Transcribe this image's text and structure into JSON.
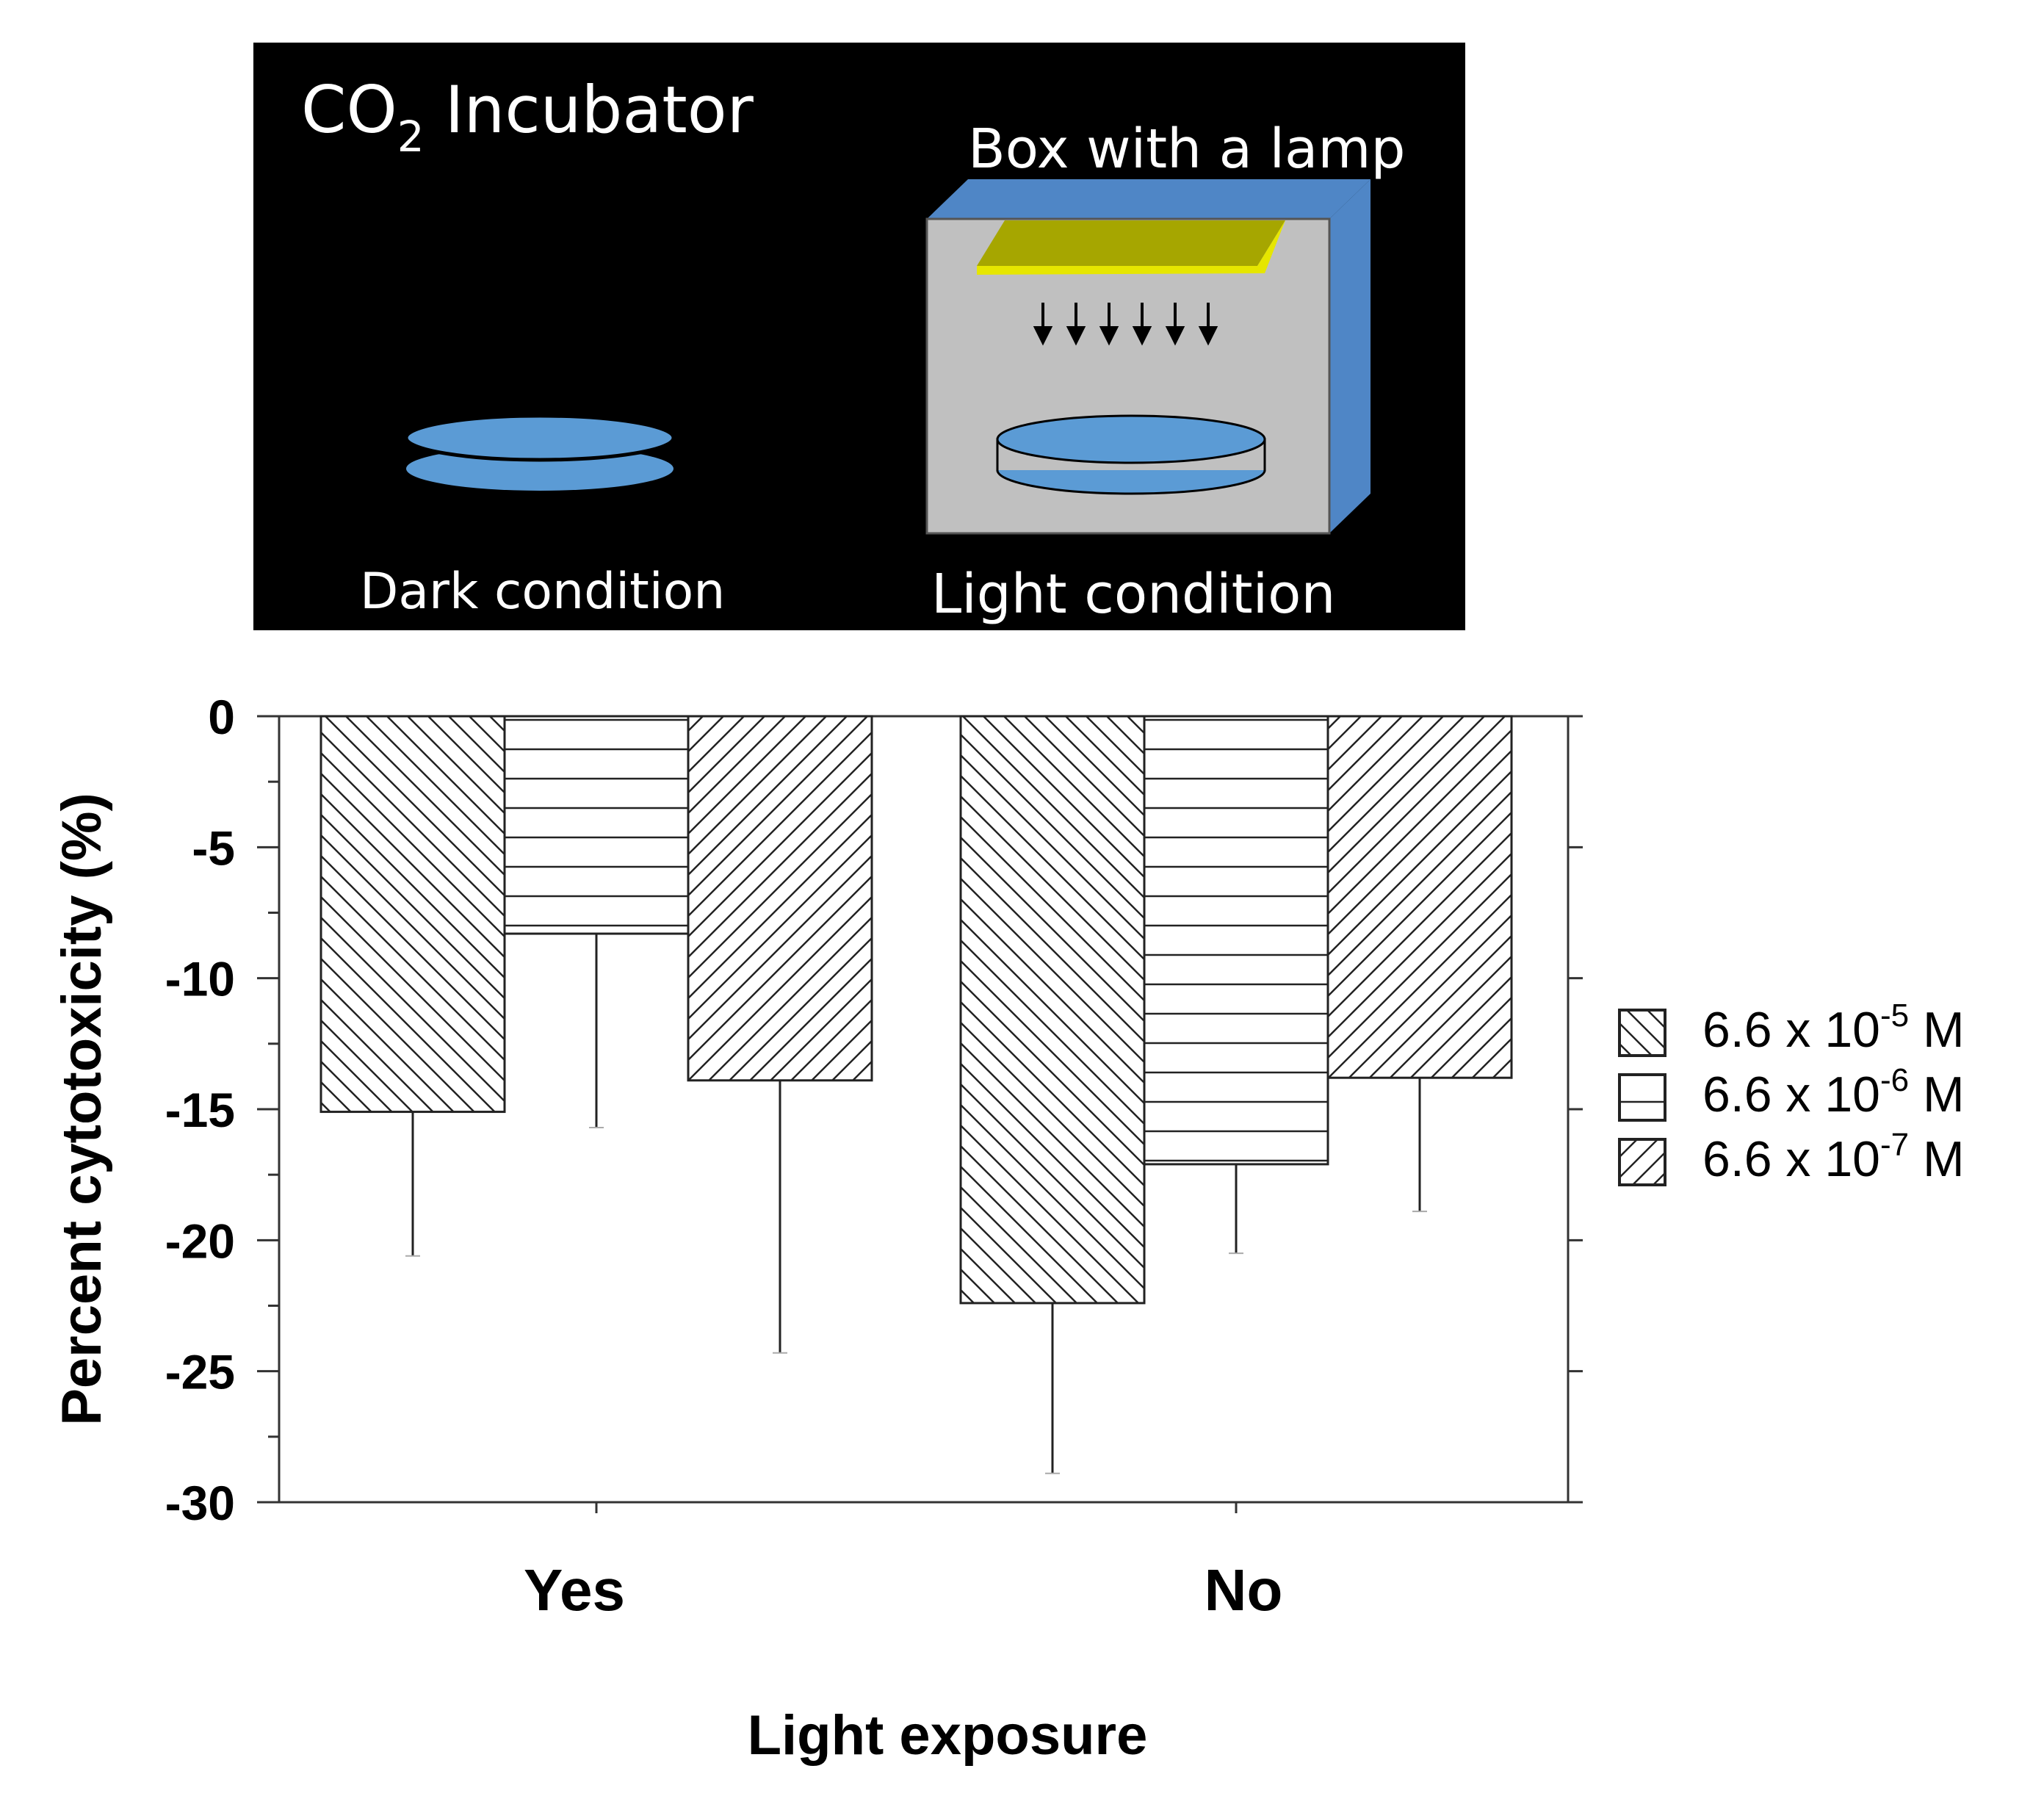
{
  "diagram": {
    "title_main": "CO",
    "title_sub": "2",
    "title_rest": " Incubator",
    "box_label": "Box with a lamp",
    "dark_label": "Dark condition",
    "light_label": "Light condition",
    "colors": {
      "background": "#000000",
      "dish": "#5b9bd5",
      "box_face": "#c0c0c0",
      "box_side": "#4f86c6",
      "lamp": "#a6a600"
    }
  },
  "chart_data": {
    "type": "bar",
    "title": "",
    "xlabel": "Light exposure",
    "ylabel": "Percent cytotoxicity (%)",
    "ylim": [
      -30,
      0
    ],
    "yticks": [
      0,
      -5,
      -10,
      -15,
      -20,
      -25,
      -30
    ],
    "categories": [
      "Yes",
      "No"
    ],
    "series": [
      {
        "name_base": "6.6 x 10",
        "name_exp": "-5",
        "name_unit": " M",
        "pattern": "back-diagonal",
        "values": [
          -15.1,
          -22.4
        ],
        "error": [
          5.5,
          6.5
        ]
      },
      {
        "name_base": "6.6 x 10",
        "name_exp": "-6",
        "name_unit": " M",
        "pattern": "horizontal",
        "values": [
          -8.3,
          -17.1
        ],
        "error": [
          7.4,
          3.4
        ]
      },
      {
        "name_base": "6.6 x 10",
        "name_exp": "-7",
        "name_unit": " M",
        "pattern": "forward-diagonal",
        "values": [
          -13.9,
          -13.8
        ],
        "error": [
          10.4,
          5.1
        ]
      }
    ],
    "legend_position": "right",
    "grid": false
  }
}
